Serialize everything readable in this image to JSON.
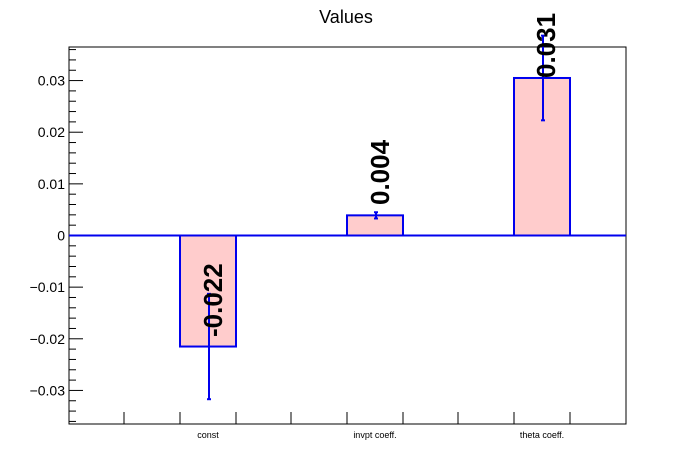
{
  "chart_data": {
    "type": "bar",
    "title": "Values",
    "categories": [
      "const",
      "invpt coeff.",
      "theta coeff."
    ],
    "values": [
      -0.0215,
      0.0039,
      0.0305
    ],
    "errors": [
      0.0102,
      0.0006,
      0.0082
    ],
    "value_labels": [
      "-0.022",
      "0.004",
      "0.031"
    ],
    "yticks": [
      "-0.03",
      "-0.02",
      "-0.01",
      "0",
      "0.01",
      "0.02",
      "0.03"
    ],
    "ytick_values": [
      -0.03,
      -0.02,
      -0.01,
      0,
      0.01,
      0.02,
      0.03
    ],
    "ylim": [
      -0.0365,
      0.0365
    ],
    "xlabel": "",
    "ylabel": "",
    "colors": {
      "bar_fill": "#ffcccc",
      "bar_stroke": "#0000ee",
      "zero_line": "#0000ee",
      "axis": "#000000",
      "label_text": "#000000"
    }
  }
}
